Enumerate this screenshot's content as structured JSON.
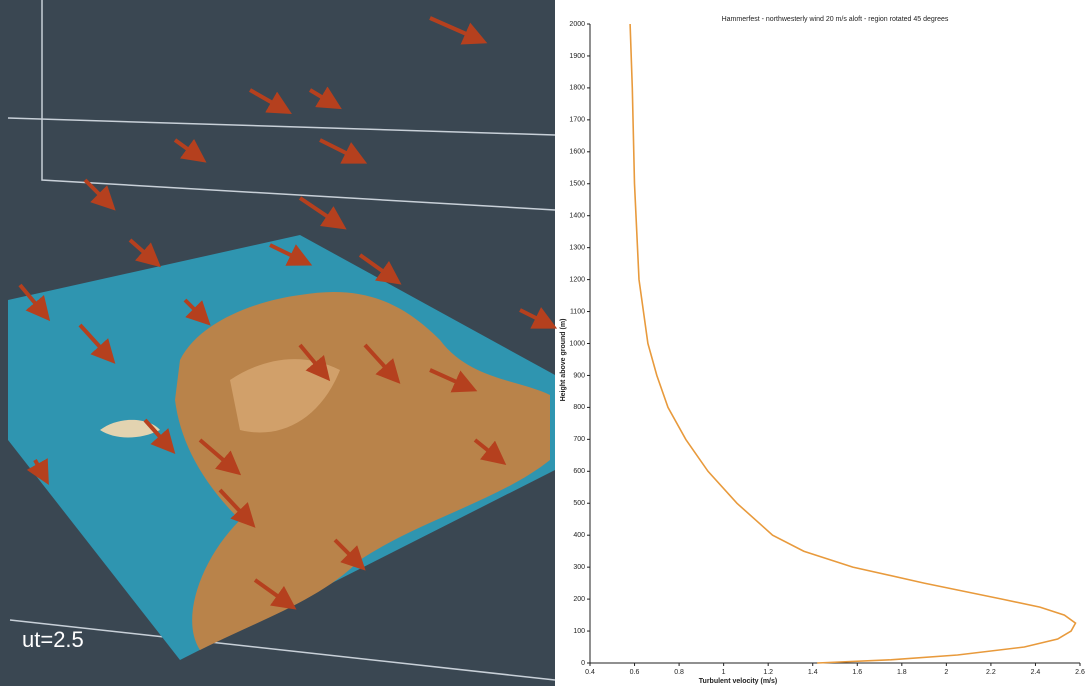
{
  "visualization": {
    "label": "ut=2.5"
  },
  "chart_data": {
    "type": "line",
    "title": "Hammerfest - northwesterly wind 20 m/s aloft - region rotated 45 degrees",
    "xlabel": "Turbulent velocity (m/s)",
    "ylabel": "Height above ground (m)",
    "x": [
      1.42,
      1.75,
      2.05,
      2.35,
      2.5,
      2.56,
      2.58,
      2.53,
      2.42,
      2.25,
      1.9,
      1.58,
      1.36,
      1.22,
      1.06,
      0.93,
      0.83,
      0.75,
      0.7,
      0.66,
      0.62,
      0.6,
      0.59,
      0.58
    ],
    "values": [
      0,
      10,
      25,
      50,
      75,
      100,
      125,
      150,
      175,
      200,
      250,
      300,
      350,
      400,
      500,
      600,
      700,
      800,
      900,
      1000,
      1200,
      1500,
      1800,
      2000
    ],
    "color": "#e89a3c",
    "xlim": [
      0.4,
      2.6
    ],
    "xticks": [
      0.4,
      0.6,
      0.8,
      1,
      1.2,
      1.4,
      1.6,
      1.8,
      2,
      2.2,
      2.4,
      2.6
    ],
    "ylim": [
      0,
      2000
    ],
    "yticks": [
      0,
      100,
      200,
      300,
      400,
      500,
      600,
      700,
      800,
      900,
      1000,
      1100,
      1200,
      1300,
      1400,
      1500,
      1600,
      1700,
      1800,
      1900,
      2000
    ],
    "grid": false
  }
}
